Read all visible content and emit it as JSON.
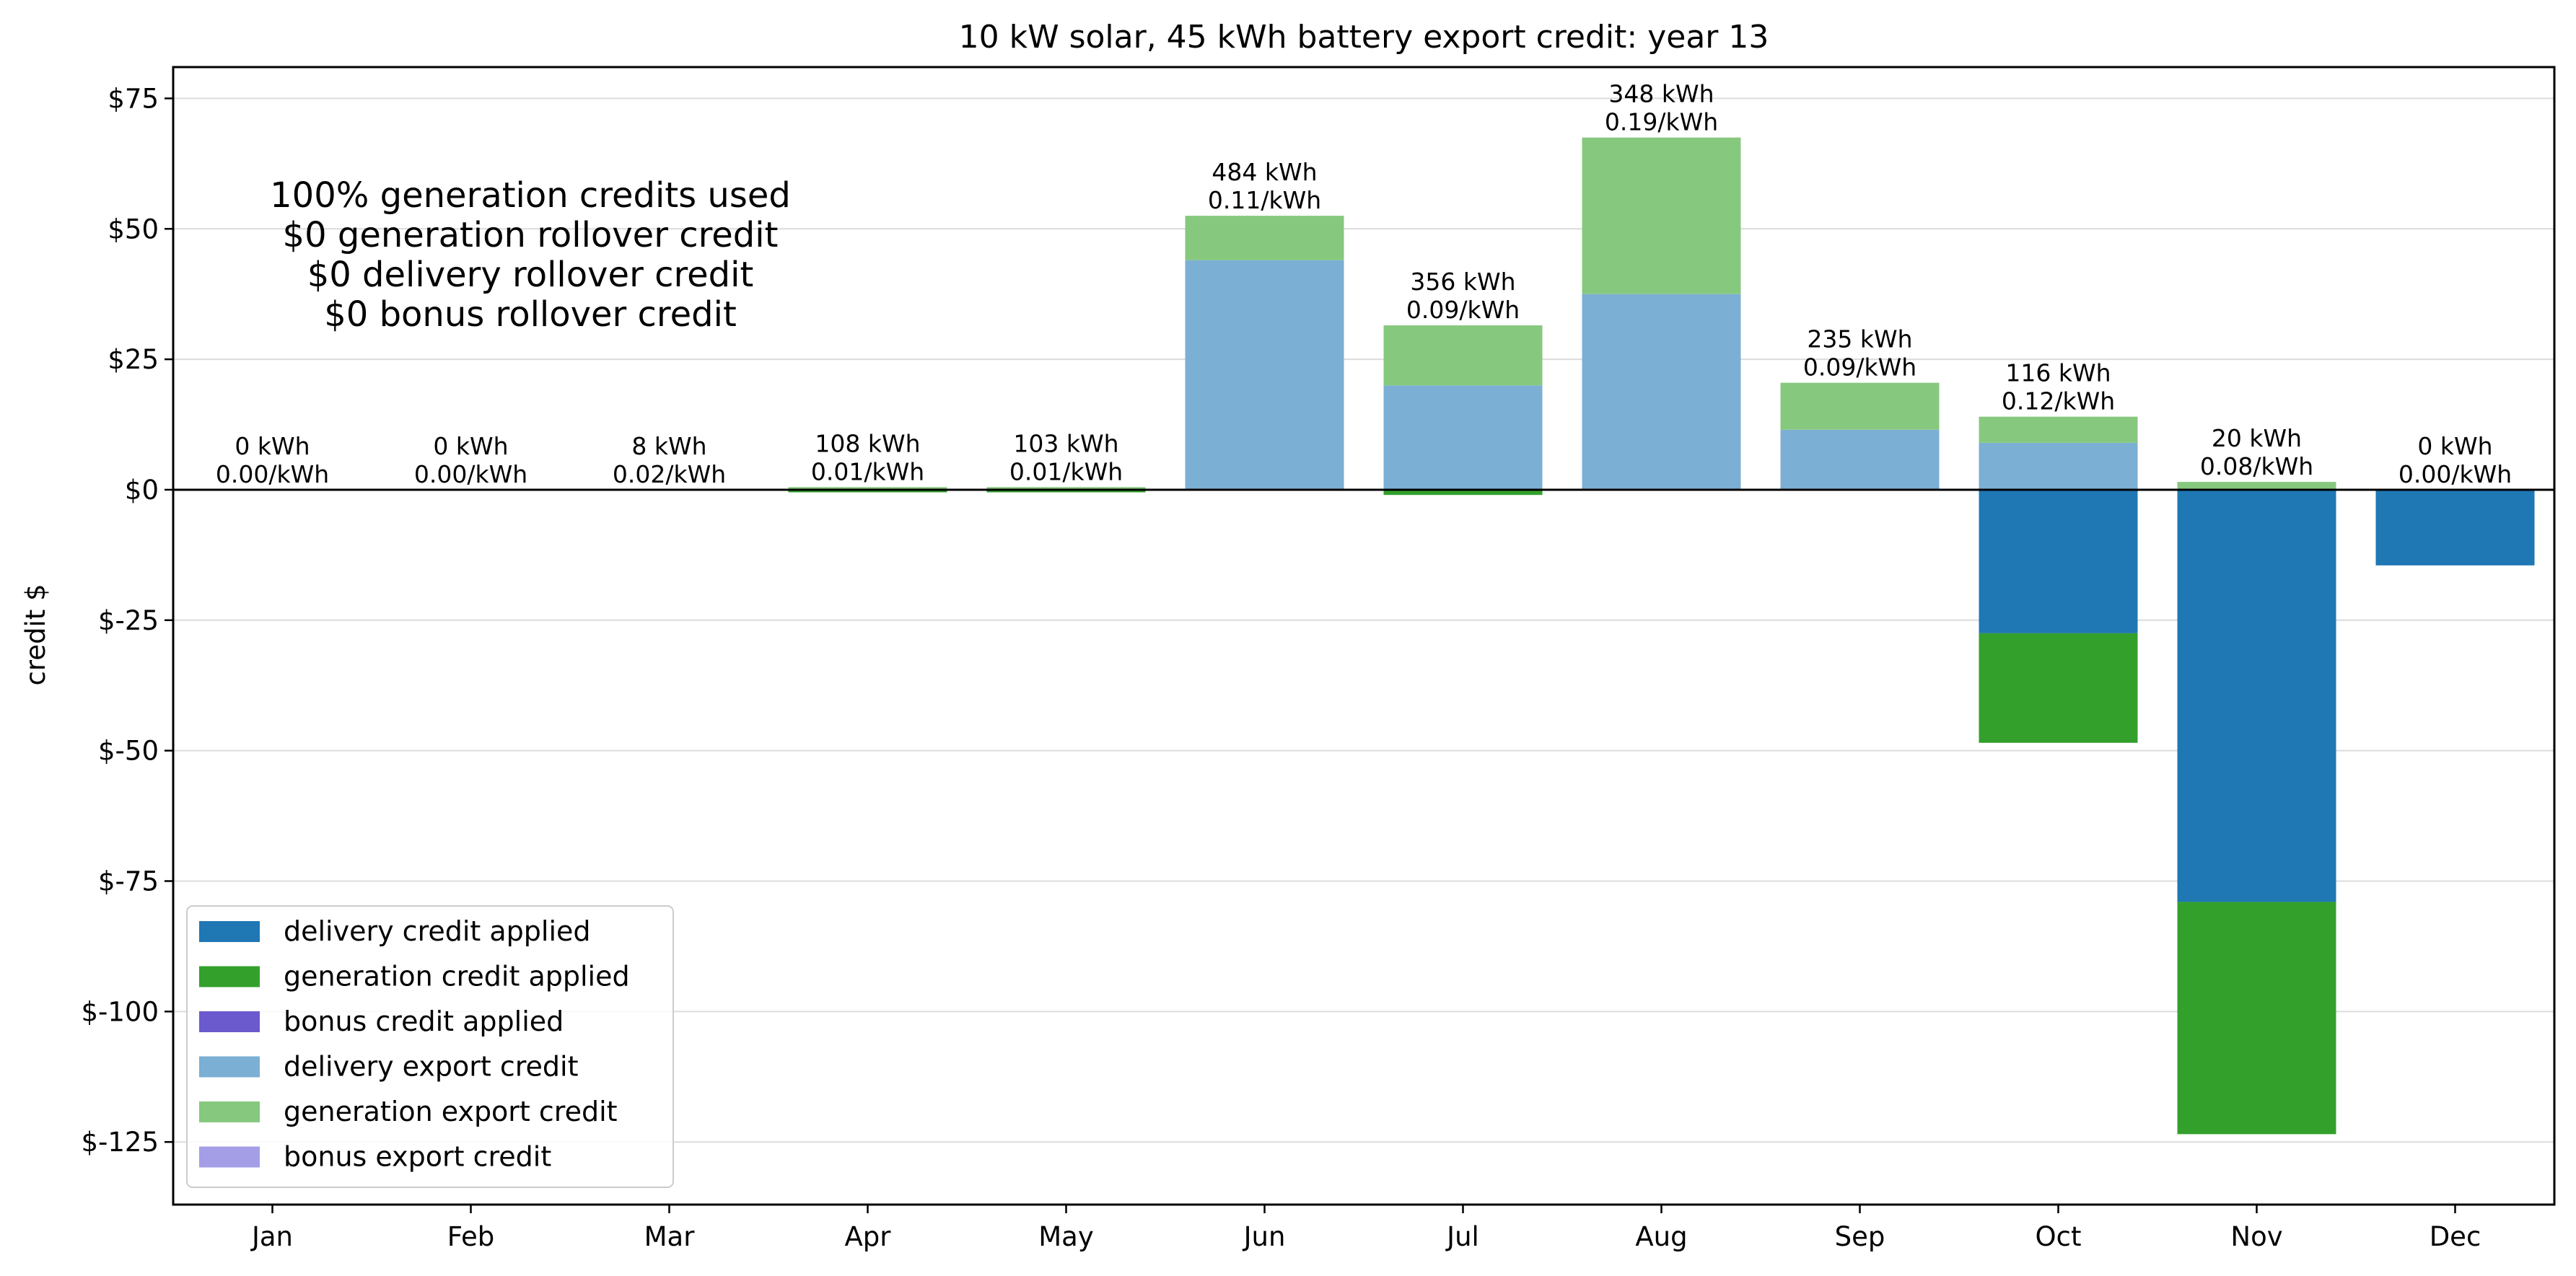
{
  "chart_data": {
    "type": "bar",
    "stacked": true,
    "title": "10 kW solar, 45 kWh battery export credit: year 13",
    "ylabel": "credit $",
    "xlabel": "",
    "ylim": [
      -137,
      81
    ],
    "yticks": [
      75,
      50,
      25,
      0,
      -25,
      -50,
      -75,
      -100,
      -125
    ],
    "ytick_labels": [
      "$75",
      "$50",
      "$25",
      "$0",
      "$-25",
      "$-50",
      "$-75",
      "$-100",
      "$-125"
    ],
    "grid": "horizontal",
    "legend_position": "lower-left",
    "categories": [
      "Jan",
      "Feb",
      "Mar",
      "Apr",
      "May",
      "Jun",
      "Jul",
      "Aug",
      "Sep",
      "Oct",
      "Nov",
      "Dec"
    ],
    "series": [
      {
        "name": "delivery credit applied",
        "color": "#1f77b4",
        "values": [
          0,
          0,
          0,
          0,
          0,
          0,
          0,
          0,
          0,
          -27.5,
          -79,
          -14.5
        ]
      },
      {
        "name": "generation credit applied",
        "color": "#33a02c",
        "values": [
          0,
          0,
          0,
          -0.5,
          -0.5,
          0,
          -1,
          0,
          0,
          -21,
          -44.5,
          0
        ]
      },
      {
        "name": "bonus credit applied",
        "color": "#6a5acd",
        "values": [
          0,
          0,
          0,
          0,
          0,
          0,
          0,
          0,
          0,
          0,
          0,
          0
        ]
      },
      {
        "name": "delivery export credit",
        "color": "#7bafd4",
        "values": [
          0,
          0,
          0,
          0,
          0,
          44,
          20,
          37.5,
          11.5,
          9,
          0,
          0
        ]
      },
      {
        "name": "generation export credit",
        "color": "#87c87f",
        "values": [
          0,
          0,
          0,
          0.5,
          0.5,
          8.5,
          11.5,
          30,
          9,
          5,
          1.5,
          0
        ]
      },
      {
        "name": "bonus export credit",
        "color": "#a49ee6",
        "values": [
          0,
          0,
          0,
          0,
          0,
          0,
          0,
          0,
          0,
          0,
          0,
          0
        ]
      }
    ],
    "bar_labels": [
      [
        "0 kWh",
        "0.00/kWh"
      ],
      [
        "0 kWh",
        "0.00/kWh"
      ],
      [
        "8 kWh",
        "0.02/kWh"
      ],
      [
        "108 kWh",
        "0.01/kWh"
      ],
      [
        "103 kWh",
        "0.01/kWh"
      ],
      [
        "484 kWh",
        "0.11/kWh"
      ],
      [
        "356 kWh",
        "0.09/kWh"
      ],
      [
        "348 kWh",
        "0.19/kWh"
      ],
      [
        "235 kWh",
        "0.09/kWh"
      ],
      [
        "116 kWh",
        "0.12/kWh"
      ],
      [
        "20 kWh",
        "0.08/kWh"
      ],
      [
        "0 kWh",
        "0.00/kWh"
      ]
    ],
    "annotation": [
      "100% generation credits used",
      "$0 generation rollover credit",
      "$0 delivery rollover credit",
      "$0 bonus rollover credit"
    ]
  }
}
